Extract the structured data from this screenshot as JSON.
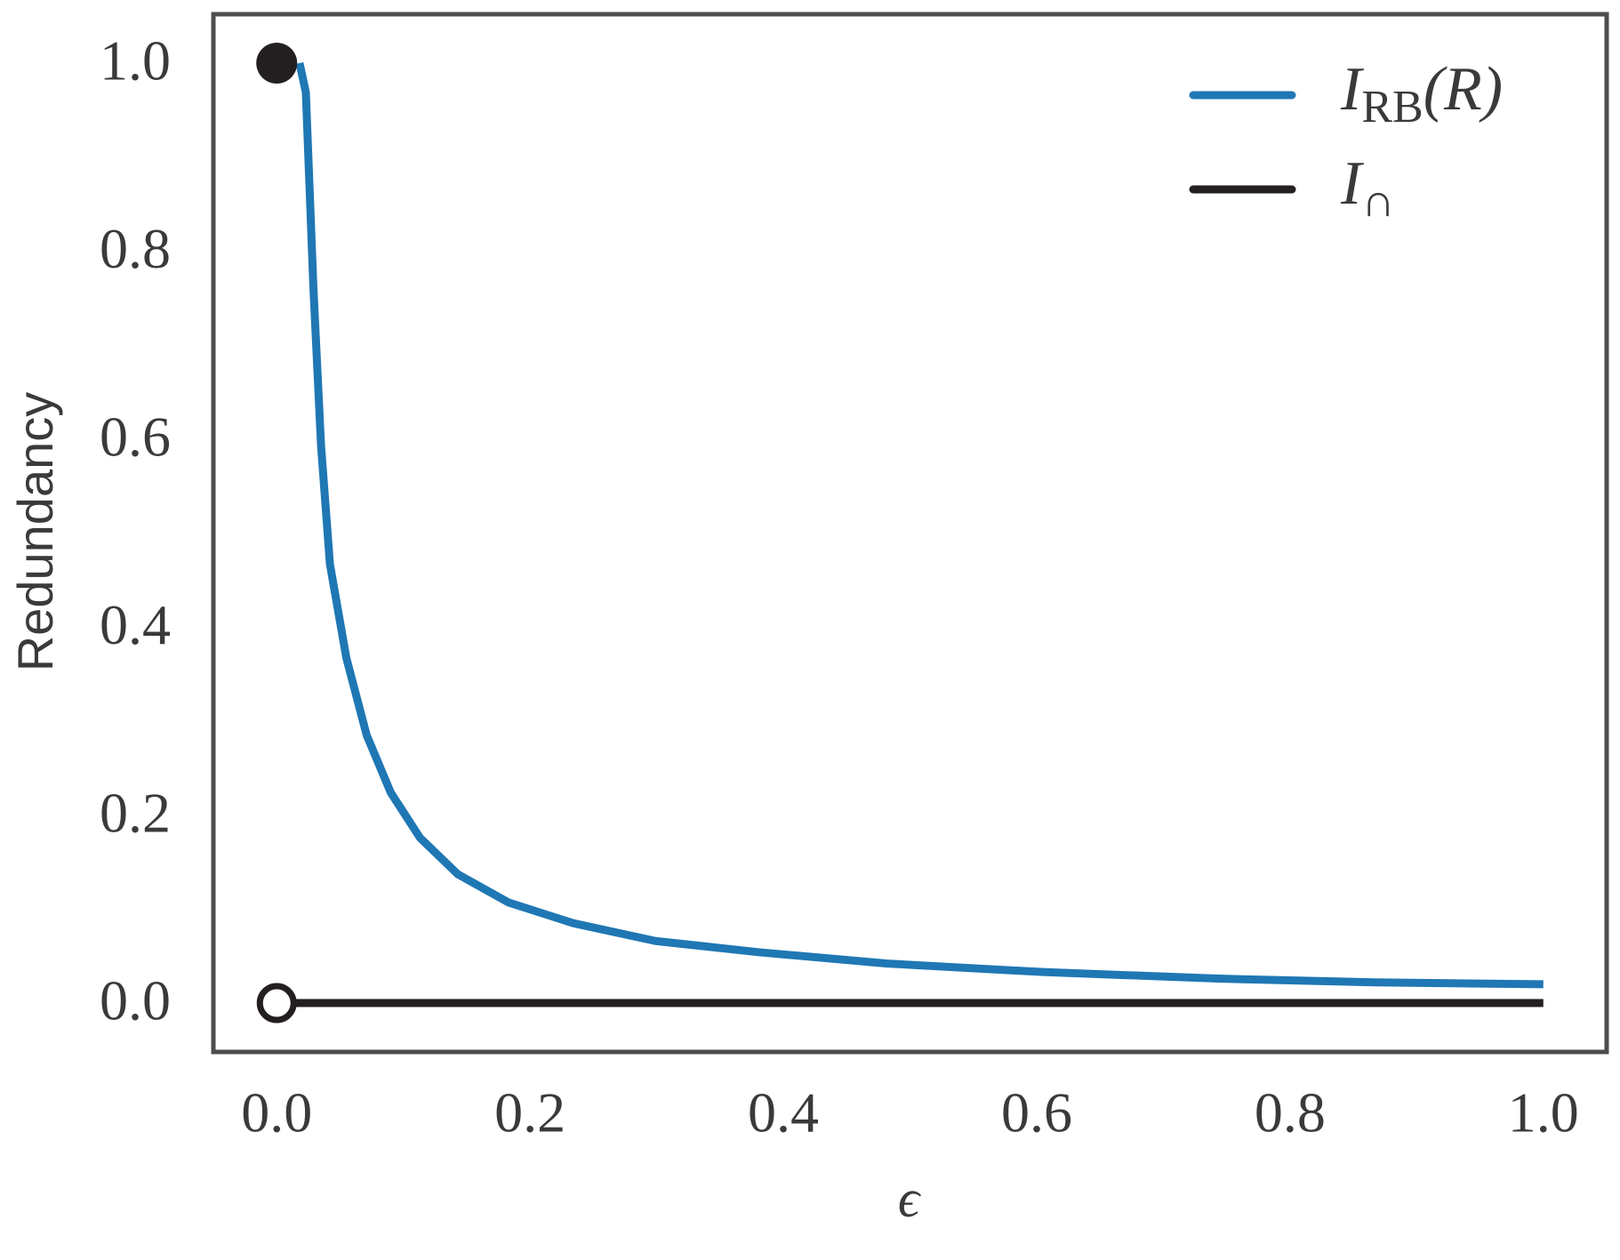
{
  "chart_data": {
    "type": "line",
    "xlabel": "ϵ",
    "ylabel": "Redundancy",
    "xlim": [
      -0.05,
      1.05
    ],
    "ylim": [
      -0.052,
      1.052
    ],
    "xticks": [
      {
        "value": 0,
        "label": "0.0"
      },
      0.2,
      0.4,
      0.6,
      0.8,
      {
        "value": 1,
        "label": "1.0"
      }
    ],
    "yticks": [
      {
        "value": 0,
        "label": "0.0"
      },
      0.2,
      0.4,
      0.6,
      0.8,
      {
        "value": 1,
        "label": "1.0"
      }
    ],
    "grid": false,
    "legend": "upper right",
    "series": [
      {
        "name": "I",
        "subscript": "RB",
        "suffix": "(R)",
        "color": "#1f77b4",
        "x": [
          0.018,
          0.023,
          0.029,
          0.035,
          0.042,
          0.055,
          0.071,
          0.09,
          0.113,
          0.143,
          0.183,
          0.234,
          0.299,
          0.381,
          0.482,
          0.605,
          0.743,
          0.866,
          1.0
        ],
        "values": [
          1.0,
          0.969,
          0.76,
          0.593,
          0.467,
          0.367,
          0.285,
          0.224,
          0.176,
          0.137,
          0.107,
          0.085,
          0.066,
          0.054,
          0.042,
          0.033,
          0.026,
          0.022,
          0.02
        ]
      },
      {
        "name": "I",
        "subscript": "∩",
        "color": "#231f20",
        "x": [
          0,
          1
        ],
        "values": [
          0,
          0
        ]
      }
    ],
    "points": [
      {
        "x": 0,
        "y": 1,
        "filled": true,
        "color": "#231f20"
      },
      {
        "x": 0,
        "y": 0,
        "filled": false,
        "color": "#231f20"
      }
    ]
  }
}
